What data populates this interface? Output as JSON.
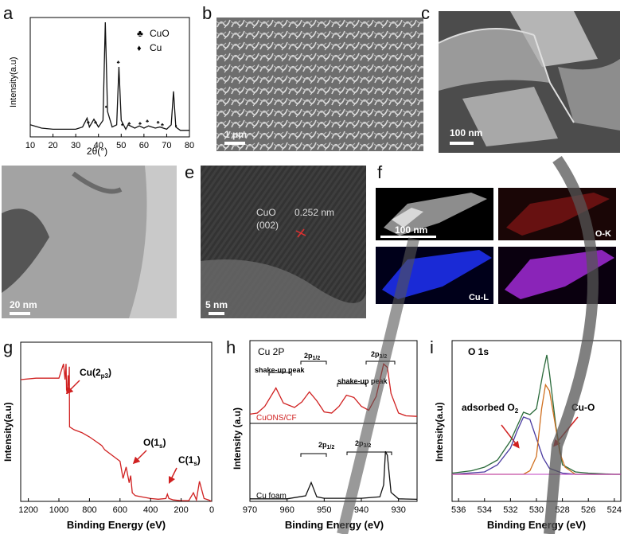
{
  "panels": {
    "a": {
      "label": "a",
      "ylabel": "Intensity(a.u)",
      "xlabel": "2θ(°)",
      "xticks": [
        "10",
        "20",
        "30",
        "40",
        "50",
        "60",
        "70",
        "80"
      ],
      "legend": [
        {
          "symbol": "♣",
          "name": "CuO"
        },
        {
          "symbol": "♦",
          "name": "Cu"
        }
      ]
    },
    "b": {
      "label": "b",
      "scalebar": "1 μm"
    },
    "c": {
      "label": "c",
      "scalebar": "100 nm"
    },
    "d": {
      "label": "d",
      "scalebar": "20 nm"
    },
    "e": {
      "label": "e",
      "scalebar": "5 nm",
      "phase": "CuO",
      "plane": "(002)",
      "spacing": "0.252 nm"
    },
    "f": {
      "label": "f",
      "scalebar": "100 nm",
      "maps": [
        "O-K",
        "Cu-L"
      ]
    },
    "g": {
      "label": "g",
      "ylabel": "Intensity(a.u)",
      "xlabel": "Binding Energy (eV)",
      "xticks": [
        "1200",
        "1000",
        "800",
        "600",
        "400",
        "200",
        "0"
      ],
      "annotations": [
        "Cu(2",
        "p3",
        ")",
        "O(1",
        "s",
        ")",
        "C(1",
        "s",
        ")"
      ]
    },
    "h": {
      "label": "h",
      "title": "Cu 2P",
      "ylabel": "Intensity (a.u)",
      "xlabel": "Binding Energy (eV)",
      "xticks": [
        "970",
        "960",
        "950",
        "940",
        "930"
      ],
      "top_annotations": [
        "shake-up peak",
        "shake-up peak"
      ],
      "samples": [
        "CuONS/CF",
        "Cu foam"
      ]
    },
    "i": {
      "label": "i",
      "title": "O 1s",
      "ylabel": "Intensity(a.u)",
      "xlabel": "Binding Energy (eV)",
      "xticks": [
        "536",
        "534",
        "532",
        "530",
        "528",
        "526",
        "524"
      ],
      "annotations": [
        "adsorbed O",
        "2",
        "Cu-O"
      ]
    }
  },
  "chart_data": [
    {
      "type": "line",
      "panel": "a",
      "title": "",
      "xlabel": "2θ(°)",
      "ylabel": "Intensity(a.u)",
      "xlim": [
        10,
        80
      ],
      "series": [
        {
          "name": "",
          "x": [
            10,
            15,
            20,
            25,
            30,
            33,
            35,
            36,
            38,
            40,
            42,
            43,
            44,
            46,
            48,
            49,
            50,
            52,
            53,
            56,
            58,
            60,
            62,
            65,
            67,
            70,
            72,
            73,
            74,
            76,
            80
          ],
          "y": [
            0.08,
            0.05,
            0.04,
            0.04,
            0.04,
            0.06,
            0.14,
            0.06,
            0.13,
            0.06,
            0.12,
            1.0,
            0.2,
            0.06,
            0.08,
            0.6,
            0.12,
            0.04,
            0.08,
            0.05,
            0.07,
            0.05,
            0.07,
            0.05,
            0.06,
            0.04,
            0.08,
            0.38,
            0.06,
            0.03,
            0.03
          ]
        }
      ],
      "markers": [
        {
          "x": 35.5,
          "phase": "CuO"
        },
        {
          "x": 38.7,
          "phase": "CuO"
        },
        {
          "x": 43.3,
          "phase": "Cu"
        },
        {
          "x": 48.7,
          "phase": "CuO"
        },
        {
          "x": 50.4,
          "phase": "Cu"
        },
        {
          "x": 53.5,
          "phase": "CuO"
        },
        {
          "x": 58.3,
          "phase": "CuO"
        },
        {
          "x": 61.5,
          "phase": "CuO"
        },
        {
          "x": 66.2,
          "phase": "CuO"
        },
        {
          "x": 68.1,
          "phase": "CuO"
        },
        {
          "x": 74.1,
          "phase": "Cu"
        }
      ]
    },
    {
      "type": "line",
      "panel": "g",
      "title": "",
      "xlabel": "Binding Energy (eV)",
      "ylabel": "Intensity(a.u)",
      "xlim": [
        1250,
        0
      ],
      "series": [
        {
          "name": "",
          "x": [
            1250,
            1150,
            1080,
            1000,
            970,
            960,
            953,
            950,
            945,
            940,
            935,
            932,
            930,
            900,
            850,
            800,
            760,
            720,
            700,
            650,
            600,
            580,
            560,
            540,
            530,
            520,
            500,
            450,
            400,
            350,
            300,
            290,
            280,
            250,
            200,
            150,
            120,
            100,
            80,
            50,
            20,
            0
          ],
          "y": [
            0.85,
            0.86,
            0.86,
            0.86,
            0.96,
            0.85,
            0.96,
            0.78,
            0.75,
            0.88,
            0.8,
            0.94,
            0.52,
            0.5,
            0.48,
            0.45,
            0.42,
            0.39,
            0.36,
            0.32,
            0.28,
            0.16,
            0.24,
            0.13,
            0.18,
            0.06,
            0.04,
            0.03,
            0.02,
            0.015,
            0.02,
            0.05,
            0.02,
            0.01,
            0.005,
            0.005,
            0.06,
            0.01,
            0.14,
            0.02,
            0.01,
            0.0
          ]
        }
      ]
    },
    {
      "type": "line",
      "panel": "h",
      "title": "Cu 2P",
      "xlabel": "Binding Energy (eV)",
      "ylabel": "Intensity (a.u)",
      "xlim": [
        970,
        925
      ],
      "series": [
        {
          "name": "CuONS/CF",
          "x": [
            970,
            968,
            966,
            963,
            961,
            958,
            956,
            954,
            952,
            950,
            948,
            946,
            944,
            942,
            940,
            938,
            936,
            934,
            933,
            932,
            930,
            928,
            925
          ],
          "y": [
            0.08,
            0.1,
            0.22,
            0.55,
            0.28,
            0.2,
            0.3,
            0.48,
            0.32,
            0.12,
            0.1,
            0.22,
            0.42,
            0.38,
            0.22,
            0.15,
            0.4,
            0.98,
            0.92,
            0.45,
            0.1,
            0.05,
            0.04
          ]
        },
        {
          "name": "Cu foam",
          "x": [
            970,
            960,
            955,
            953.5,
            952,
            950,
            940,
            935,
            934,
            933.5,
            933,
            932,
            930,
            925
          ],
          "y": [
            0.02,
            0.02,
            0.08,
            0.35,
            0.06,
            0.03,
            0.03,
            0.06,
            0.3,
            0.98,
            0.9,
            0.15,
            0.02,
            0.01
          ]
        }
      ]
    },
    {
      "type": "line",
      "panel": "i",
      "title": "O 1s",
      "xlabel": "Binding Energy (eV)",
      "ylabel": "Intensity(a.u)",
      "xlim": [
        536.5,
        523.5
      ],
      "series": [
        {
          "name": "",
          "x": [
            536.5,
            535,
            534,
            533,
            532,
            531.5,
            531,
            530.5,
            530,
            529.5,
            529.2,
            529,
            528.5,
            528,
            527,
            526,
            524,
            523.5
          ],
          "y": [
            0.01,
            0.03,
            0.06,
            0.12,
            0.28,
            0.4,
            0.52,
            0.5,
            0.55,
            0.85,
            1.0,
            0.85,
            0.4,
            0.08,
            0.02,
            0.01,
            0.0,
            0.0
          ]
        },
        {
          "name": "",
          "x": [
            536.5,
            534,
            533,
            532,
            531.5,
            531,
            530.5,
            530,
            529.5,
            529,
            528,
            527,
            524,
            523.5
          ],
          "y": [
            0.0,
            0.02,
            0.08,
            0.22,
            0.36,
            0.48,
            0.46,
            0.3,
            0.14,
            0.05,
            0.01,
            0.0,
            0.0,
            0.0
          ]
        },
        {
          "name": "",
          "x": [
            536.5,
            531,
            530.5,
            530,
            529.6,
            529.3,
            529,
            528.6,
            528.2,
            527.8,
            527,
            526,
            523.5
          ],
          "y": [
            0.0,
            0.0,
            0.03,
            0.15,
            0.55,
            0.75,
            0.7,
            0.45,
            0.18,
            0.06,
            0.0,
            0.0,
            0.0
          ]
        }
      ]
    }
  ]
}
